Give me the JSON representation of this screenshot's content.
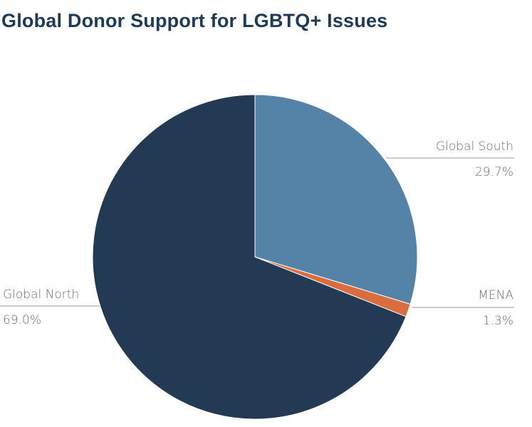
{
  "chart_data": {
    "type": "pie",
    "title": "Global Donor Support for LGBTQ+ Issues",
    "slices": [
      {
        "label": "Global South",
        "value": 29.7,
        "value_label": "29.7%",
        "color": "#5583a8"
      },
      {
        "label": "MENA",
        "value": 1.3,
        "value_label": "1.3%",
        "color": "#d96d3f"
      },
      {
        "label": "Global North",
        "value": 69.0,
        "value_label": "69.0%",
        "color": "#223a54"
      }
    ],
    "start_angle": "12 o'clock",
    "direction": "clockwise"
  }
}
